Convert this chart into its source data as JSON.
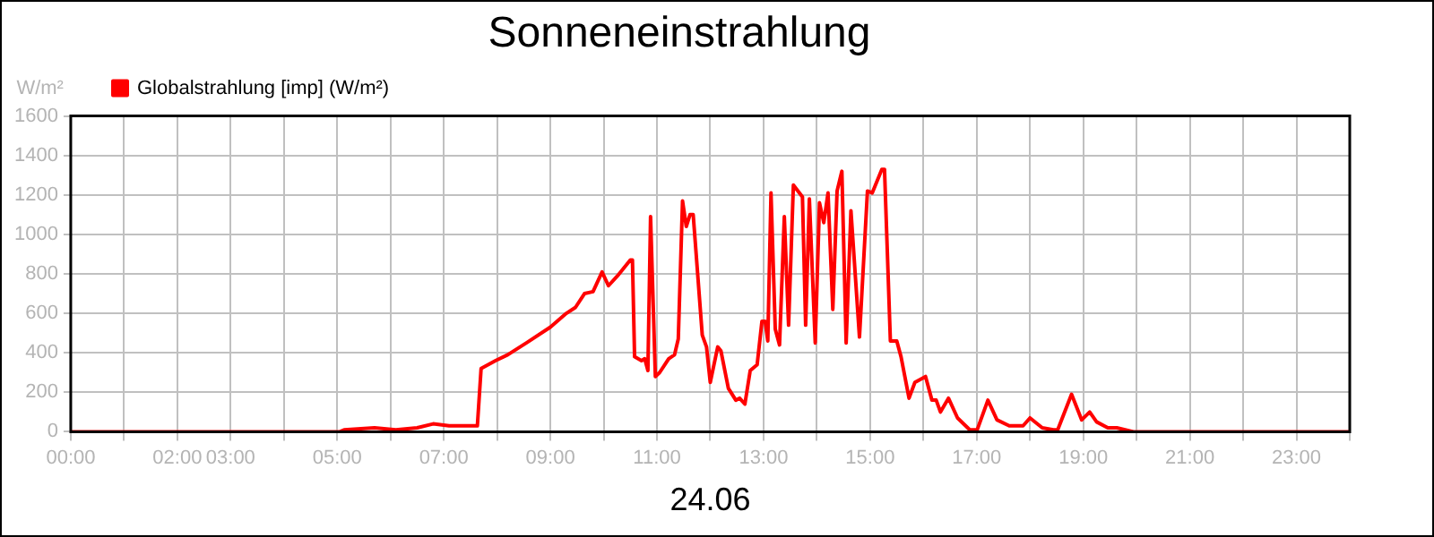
{
  "chart_data": {
    "type": "line",
    "title": "Sonneneinstrahlung",
    "xlabel": "24.06",
    "ylabel": "W/m²",
    "legend": "top left",
    "grid": true,
    "marker": "none",
    "line_style": "solid",
    "xlim": [
      0,
      24
    ],
    "xticks": [
      {
        "value": 0,
        "label": "00:00"
      },
      {
        "value": 1,
        "label": null
      },
      {
        "value": 2,
        "label": "02:00"
      },
      {
        "value": 3,
        "label": "03:00"
      },
      {
        "value": 4,
        "label": null
      },
      {
        "value": 5,
        "label": "05:00"
      },
      {
        "value": 6,
        "label": null
      },
      {
        "value": 7,
        "label": "07:00"
      },
      {
        "value": 8,
        "label": null
      },
      {
        "value": 9,
        "label": "09:00"
      },
      {
        "value": 10,
        "label": null
      },
      {
        "value": 11,
        "label": "11:00"
      },
      {
        "value": 12,
        "label": null
      },
      {
        "value": 13,
        "label": "13:00"
      },
      {
        "value": 14,
        "label": null
      },
      {
        "value": 15,
        "label": "15:00"
      },
      {
        "value": 16,
        "label": null
      },
      {
        "value": 17,
        "label": "17:00"
      },
      {
        "value": 18,
        "label": null
      },
      {
        "value": 19,
        "label": "19:00"
      },
      {
        "value": 20,
        "label": null
      },
      {
        "value": 21,
        "label": "21:00"
      },
      {
        "value": 22,
        "label": null
      },
      {
        "value": 23,
        "label": "23:00"
      },
      {
        "value": 24,
        "label": null
      }
    ],
    "ylim": [
      0,
      1600
    ],
    "yticks": [
      0,
      200,
      400,
      600,
      800,
      1000,
      1200,
      1400,
      1600
    ],
    "series": [
      {
        "name": "Globalstrahlung [imp] (W/m²)",
        "color": "#ff0000",
        "x": [
          0,
          5.05,
          5.13,
          5.7,
          6.1,
          6.5,
          6.8,
          7.1,
          7.63,
          7.7,
          7.97,
          8.2,
          8.55,
          9.0,
          9.3,
          9.47,
          9.64,
          9.8,
          9.97,
          10.09,
          10.26,
          10.5,
          10.54,
          10.58,
          10.71,
          10.77,
          10.83,
          10.88,
          10.97,
          11.05,
          11.22,
          11.33,
          11.4,
          11.48,
          11.55,
          11.62,
          11.68,
          11.85,
          11.93,
          12.0,
          12.14,
          12.2,
          12.34,
          12.48,
          12.55,
          12.65,
          12.75,
          12.88,
          12.97,
          13.03,
          13.08,
          13.14,
          13.22,
          13.3,
          13.39,
          13.47,
          13.56,
          13.73,
          13.79,
          13.86,
          13.97,
          14.05,
          14.13,
          14.21,
          14.3,
          14.38,
          14.47,
          14.55,
          14.64,
          14.8,
          14.95,
          15.04,
          15.22,
          15.27,
          15.38,
          15.5,
          15.58,
          15.73,
          15.84,
          16.04,
          16.16,
          16.24,
          16.32,
          16.47,
          16.64,
          16.87,
          17.01,
          17.21,
          17.38,
          17.61,
          17.87,
          18.0,
          18.23,
          18.44,
          18.52,
          18.78,
          18.97,
          19.12,
          19.25,
          19.46,
          19.63,
          19.94,
          20.5,
          20.7,
          24
        ],
        "values": [
          0,
          0,
          10,
          20,
          10,
          20,
          40,
          30,
          30,
          320,
          360,
          390,
          450,
          530,
          600,
          630,
          700,
          710,
          810,
          740,
          790,
          870,
          870,
          380,
          360,
          370,
          310,
          1090,
          280,
          300,
          370,
          390,
          470,
          1170,
          1040,
          1100,
          1100,
          490,
          430,
          250,
          430,
          410,
          220,
          160,
          170,
          140,
          310,
          340,
          560,
          560,
          460,
          1210,
          520,
          440,
          1090,
          540,
          1250,
          1190,
          540,
          1180,
          450,
          1160,
          1060,
          1210,
          620,
          1220,
          1320,
          450,
          1120,
          480,
          1220,
          1210,
          1330,
          1330,
          460,
          460,
          380,
          170,
          250,
          280,
          160,
          160,
          100,
          170,
          70,
          10,
          10,
          160,
          60,
          30,
          30,
          70,
          20,
          10,
          10,
          190,
          60,
          100,
          50,
          20,
          20,
          0,
          0,
          0,
          0
        ]
      }
    ]
  }
}
